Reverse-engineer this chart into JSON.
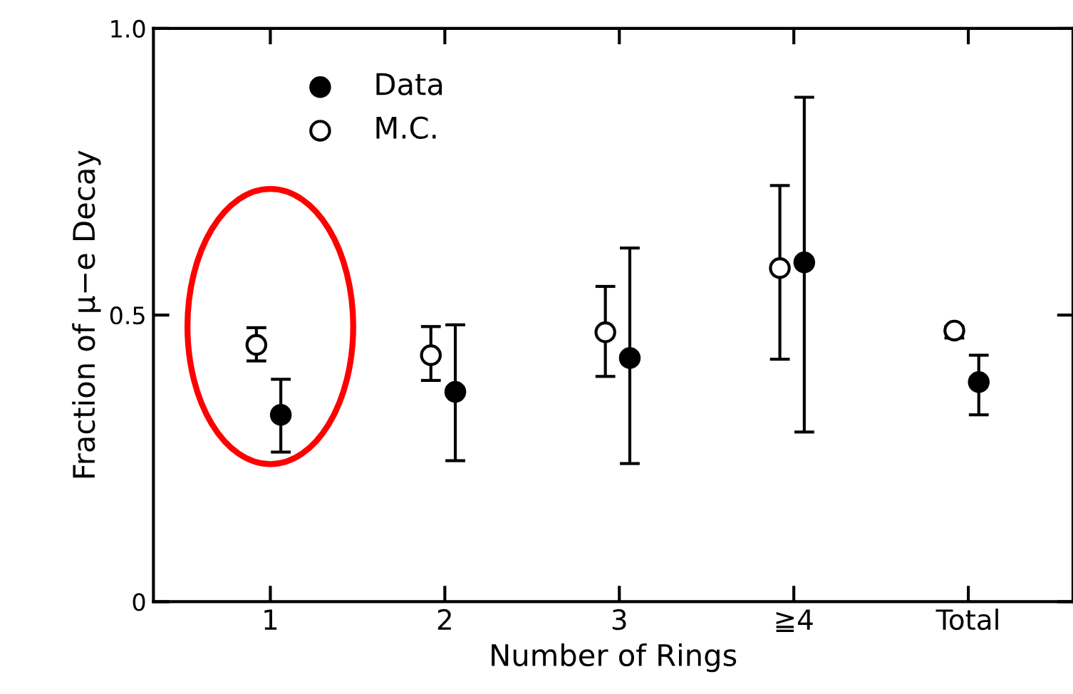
{
  "chart_data": {
    "type": "scatter",
    "xlabel": "Number of Rings",
    "ylabel": "Fraction of μ−e Decay",
    "categories": [
      "1",
      "2",
      "3",
      "≧4",
      "Total"
    ],
    "series": [
      {
        "name": "Data",
        "color": "#000000",
        "marker": "circle",
        "values": [
          0.326,
          0.366,
          0.425,
          0.592,
          0.383
        ],
        "errors": [
          [
            0.261,
            0.388
          ],
          [
            0.246,
            0.483
          ],
          [
            0.241,
            0.617
          ],
          [
            0.296,
            0.88
          ],
          [
            0.326,
            0.43
          ]
        ]
      },
      {
        "name": "M.C.",
        "color": "#000000",
        "marker": "circle",
        "values": [
          0.448,
          0.43,
          0.47,
          0.582,
          0.473
        ],
        "errors": [
          [
            0.42,
            0.478
          ],
          [
            0.386,
            0.48
          ],
          [
            0.393,
            0.55
          ],
          [
            0.423,
            0.726
          ],
          [
            0.46,
            0.48
          ]
        ]
      }
    ],
    "ylim": [
      0,
      1.0
    ],
    "yticks": [
      0,
      0.5,
      {
        "value": 1.0,
        "label": "1.0"
      }
    ],
    "grid": false,
    "legend": "top left"
  }
}
